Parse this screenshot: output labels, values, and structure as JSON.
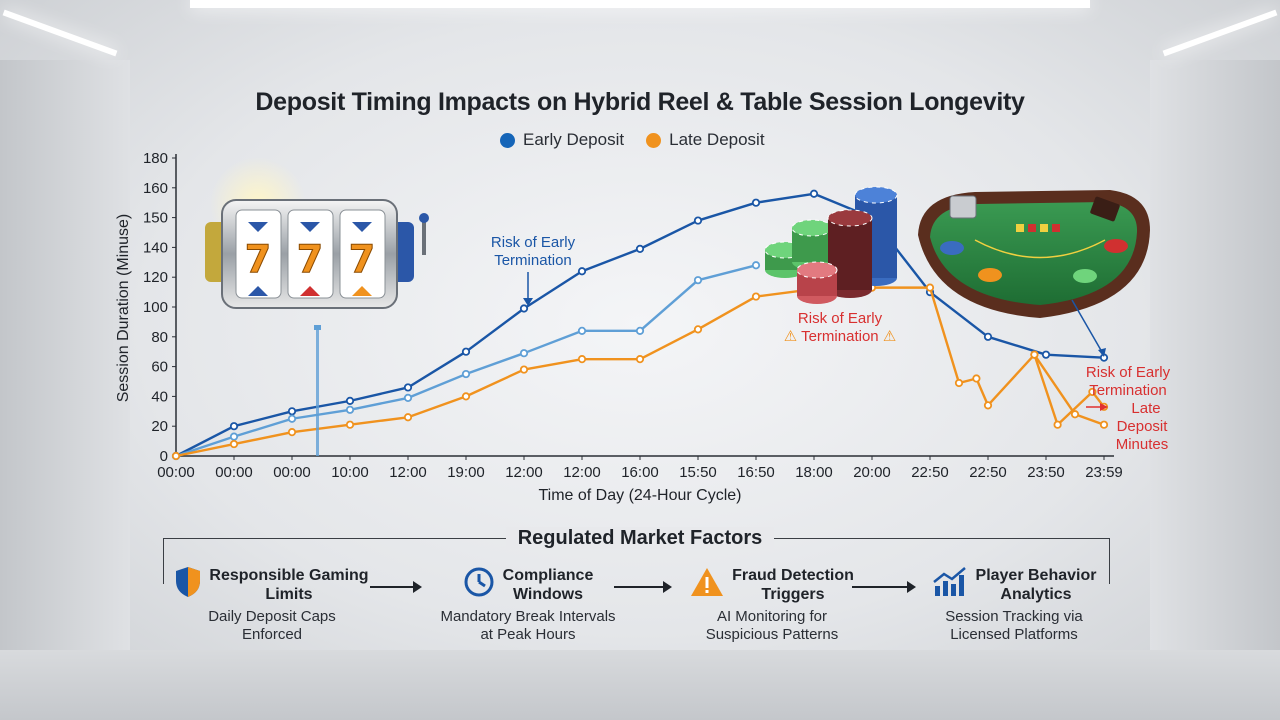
{
  "chart_data": {
    "type": "line",
    "title": "Deposit Timing Impacts on Hybrid Reel & Table Session Longevity",
    "xlabel": "Time of Day (24-Hour Cycle)",
    "ylabel": "Session Duration (Minuse)",
    "yticks": [
      "0",
      "20",
      "40",
      "60",
      "80",
      "100",
      "120",
      "140",
      "150",
      "160",
      "180"
    ],
    "x_ticks": [
      "00:00",
      "00:00",
      "00:00",
      "10:00",
      "12:00",
      "19:00",
      "12:00",
      "12:00",
      "16:00",
      "15:50",
      "16:50",
      "18:00",
      "20:00",
      "22:50",
      "22:50",
      "23:50",
      "23:59"
    ],
    "legend": [
      {
        "name": "Early Deposit",
        "color": "#1565b8"
      },
      {
        "name": "Late Deposit",
        "color": "#f0921e"
      }
    ],
    "series": [
      {
        "name": "Early Deposit",
        "color": "#1a56a6",
        "x": [
          0,
          1,
          2,
          3,
          4,
          5,
          6,
          7,
          8,
          9,
          10,
          11,
          12,
          13,
          14,
          15,
          16
        ],
        "values": [
          0,
          20,
          30,
          37,
          46,
          70,
          99,
          124,
          139,
          149,
          155,
          158,
          150,
          110,
          80,
          68,
          66
        ]
      },
      {
        "name": "",
        "color": "#5f9fd6",
        "x": [
          0,
          1,
          2,
          3,
          4,
          5,
          6,
          7,
          8,
          9,
          10
        ],
        "values": [
          0,
          13,
          25,
          31,
          39,
          55,
          69,
          84,
          84,
          118,
          128
        ]
      },
      {
        "name": "Late Deposit",
        "color": "#f0921e",
        "x": [
          0,
          1,
          2,
          3,
          4,
          5,
          6,
          7,
          8,
          9,
          10,
          11,
          12,
          13,
          13.5,
          13.8,
          14,
          14.8,
          15.2,
          15.8,
          16
        ],
        "values": [
          0,
          8,
          16,
          21,
          26,
          40,
          58,
          65,
          65,
          85,
          107,
          112,
          113,
          113,
          49,
          52,
          34,
          68,
          21,
          43,
          33
        ]
      },
      {
        "name": "",
        "color": "#f0921e",
        "x": [
          14.8,
          15.5,
          16
        ],
        "values": [
          68,
          28,
          21
        ]
      }
    ]
  },
  "annotations": {
    "risk_early_blue": "Risk of Early Termination",
    "risk_early_center": "Risk of Early",
    "risk_early_center_2": "Termination",
    "risk_right_1": "Risk of Early",
    "risk_right_2": "Termination",
    "risk_right_3": "Late",
    "risk_right_4": "Deposit",
    "risk_right_5": "Minutes"
  },
  "factors": {
    "title": "Regulated Market Factors",
    "items": [
      {
        "title": "Responsible Gaming Limits",
        "title_line1": "Responsible Gaming",
        "title_line2": "Limits",
        "desc_line1": "Daily Deposit Caps",
        "desc_line2": "Enforced",
        "icon": "shield-icon",
        "color": "#1a56a6"
      },
      {
        "title": "Compliance Windows",
        "title_line1": "Compliance",
        "title_line2": "Windows",
        "desc_line1": "Mandatory Break Intervals",
        "desc_line2": "at Peak Hours",
        "icon": "clock-icon",
        "color": "#1a56a6"
      },
      {
        "title": "Fraud Detection Triggers",
        "title_line1": "Fraud Detection",
        "title_line2": "Triggers",
        "desc_line1": "AI Monitoring for",
        "desc_line2": "Suspicious Patterns",
        "icon": "warning-icon",
        "color": "#f0921e"
      },
      {
        "title": "Player Behavior Analytics",
        "title_line1": "Player Behavior",
        "title_line2": "Analytics",
        "desc_line1": "Session Tracking via",
        "desc_line2": "Licensed Platforms",
        "icon": "analytics-icon",
        "color": "#1a56a6"
      }
    ]
  },
  "slot_machine": {
    "symbol": "7"
  }
}
